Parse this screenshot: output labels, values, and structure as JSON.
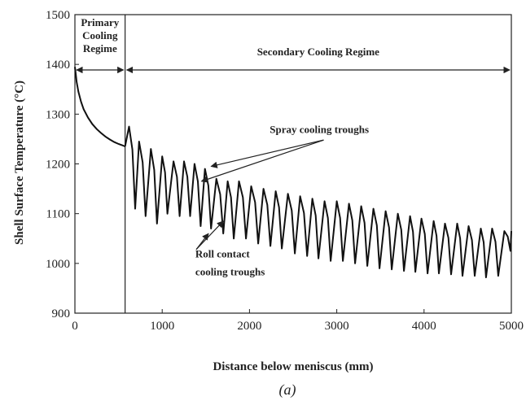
{
  "chart_data": {
    "type": "line",
    "caption": "(a)",
    "xlabel": "Distance below meniscus (mm)",
    "ylabel": "Shell Surface Temperature (°C)",
    "xlim": [
      0,
      5000
    ],
    "ylim": [
      900,
      1500
    ],
    "xticks": [
      0,
      1000,
      2000,
      3000,
      4000,
      5000
    ],
    "yticks": [
      900,
      1000,
      1100,
      1200,
      1300,
      1400,
      1500
    ],
    "grid": false,
    "regime_boundary_x": 575,
    "regions": [
      {
        "label_lines": [
          "Primary",
          "Cooling",
          "Regime"
        ],
        "x_start": 0,
        "x_end": 575
      },
      {
        "label_lines": [
          "Secondary Cooling Regime"
        ],
        "x_start": 575,
        "x_end": 5000
      }
    ],
    "annotations": [
      {
        "label_lines": [
          "Spray cooling troughs"
        ],
        "targets": [
          [
            1560,
            1195
          ],
          [
            1450,
            1165
          ]
        ]
      },
      {
        "label_lines": [
          "Roll contact",
          "cooling troughs"
        ],
        "targets": [
          [
            1530,
            1060
          ],
          [
            1700,
            1085
          ]
        ]
      }
    ],
    "primary_curve": {
      "x": [
        0,
        10,
        20,
        40,
        70,
        100,
        150,
        200,
        250,
        300,
        350,
        400,
        450,
        500,
        550,
        575
      ],
      "y": [
        1395,
        1380,
        1365,
        1345,
        1325,
        1310,
        1293,
        1280,
        1270,
        1262,
        1255,
        1249,
        1244,
        1240,
        1237,
        1235
      ]
    },
    "secondary_cycles": {
      "peak_x": [
        620,
        735,
        870,
        1000,
        1130,
        1250,
        1370,
        1490,
        1620,
        1750,
        1880,
        2020,
        2160,
        2300,
        2440,
        2580,
        2720,
        2860,
        3000,
        3140,
        3280,
        3420,
        3560,
        3700,
        3840,
        3970,
        4110,
        4240,
        4380,
        4510,
        4650,
        4780,
        4920,
        5000
      ],
      "peak_y": [
        1275,
        1245,
        1230,
        1215,
        1205,
        1205,
        1200,
        1190,
        1170,
        1165,
        1165,
        1155,
        1150,
        1145,
        1140,
        1135,
        1130,
        1125,
        1125,
        1120,
        1115,
        1110,
        1105,
        1100,
        1095,
        1090,
        1085,
        1080,
        1080,
        1075,
        1070,
        1070,
        1065,
        1065
      ],
      "trough_x": [
        690,
        810,
        940,
        1060,
        1200,
        1320,
        1440,
        1560,
        1700,
        1820,
        1960,
        2100,
        2240,
        2370,
        2520,
        2660,
        2790,
        2930,
        3070,
        3210,
        3350,
        3490,
        3630,
        3770,
        3900,
        4040,
        4170,
        4310,
        4440,
        4580,
        4710,
        4850,
        4990
      ],
      "trough_y": [
        1110,
        1095,
        1080,
        1100,
        1095,
        1095,
        1075,
        1070,
        1060,
        1050,
        1050,
        1040,
        1035,
        1030,
        1020,
        1015,
        1010,
        1005,
        1005,
        1000,
        995,
        990,
        988,
        985,
        983,
        980,
        980,
        978,
        975,
        975,
        972,
        975,
        1025
      ]
    }
  }
}
